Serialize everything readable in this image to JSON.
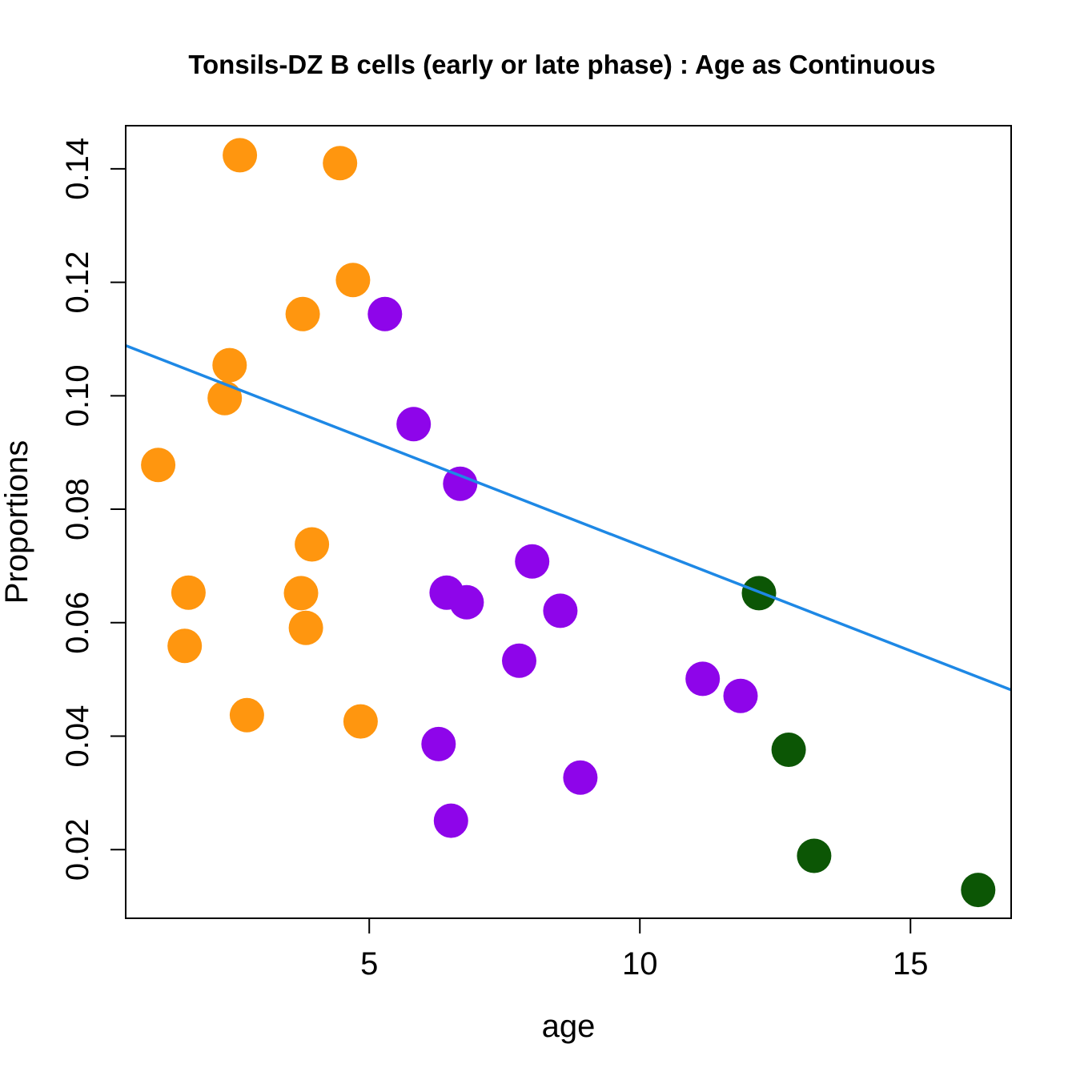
{
  "chart_data": {
    "type": "scatter",
    "title": "Tonsils-DZ B cells (early or late phase) : Age as Continuous",
    "xlabel": "age",
    "ylabel": "Proportions",
    "xlim": [
      0.5,
      16.86
    ],
    "ylim": [
      0.0079,
      0.1476
    ],
    "x_ticks": [
      5,
      10,
      15
    ],
    "x_tick_labels": [
      "5",
      "10",
      "15"
    ],
    "y_ticks": [
      0.02,
      0.04,
      0.06,
      0.08,
      0.1,
      0.12,
      0.14
    ],
    "y_tick_labels": [
      "0.02",
      "0.04",
      "0.06",
      "0.08",
      "0.10",
      "0.12",
      "0.14"
    ],
    "grid": false,
    "legend": null,
    "series": [
      {
        "name": "orange group",
        "color": "#FF960F",
        "points": [
          {
            "x": 2.61,
            "y": 0.1424
          },
          {
            "x": 4.46,
            "y": 0.141
          },
          {
            "x": 4.7,
            "y": 0.1204
          },
          {
            "x": 3.77,
            "y": 0.1144
          },
          {
            "x": 2.42,
            "y": 0.1054
          },
          {
            "x": 2.33,
            "y": 0.0996
          },
          {
            "x": 1.1,
            "y": 0.0878
          },
          {
            "x": 3.94,
            "y": 0.0738
          },
          {
            "x": 1.66,
            "y": 0.0653
          },
          {
            "x": 3.74,
            "y": 0.0652
          },
          {
            "x": 3.83,
            "y": 0.0591
          },
          {
            "x": 1.59,
            "y": 0.0559
          },
          {
            "x": 2.74,
            "y": 0.0437
          },
          {
            "x": 4.84,
            "y": 0.0426
          }
        ]
      },
      {
        "name": "purple group",
        "color": "#8E05EA",
        "points": [
          {
            "x": 5.29,
            "y": 0.1144
          },
          {
            "x": 5.82,
            "y": 0.095
          },
          {
            "x": 6.68,
            "y": 0.0845
          },
          {
            "x": 8.01,
            "y": 0.0708
          },
          {
            "x": 6.43,
            "y": 0.0653
          },
          {
            "x": 6.8,
            "y": 0.0636
          },
          {
            "x": 8.53,
            "y": 0.0621
          },
          {
            "x": 7.77,
            "y": 0.0533
          },
          {
            "x": 6.28,
            "y": 0.0386
          },
          {
            "x": 8.9,
            "y": 0.0327
          },
          {
            "x": 6.51,
            "y": 0.0251
          },
          {
            "x": 11.16,
            "y": 0.0501
          },
          {
            "x": 11.86,
            "y": 0.0471
          }
        ]
      },
      {
        "name": "green group",
        "color": "#0C5605",
        "points": [
          {
            "x": 12.2,
            "y": 0.0652
          },
          {
            "x": 12.75,
            "y": 0.0376
          },
          {
            "x": 13.22,
            "y": 0.0189
          },
          {
            "x": 16.25,
            "y": 0.0129
          }
        ]
      }
    ],
    "regression_line": {
      "color": "#1E88E5",
      "intercept": 0.1107,
      "slope": -0.00371
    }
  }
}
